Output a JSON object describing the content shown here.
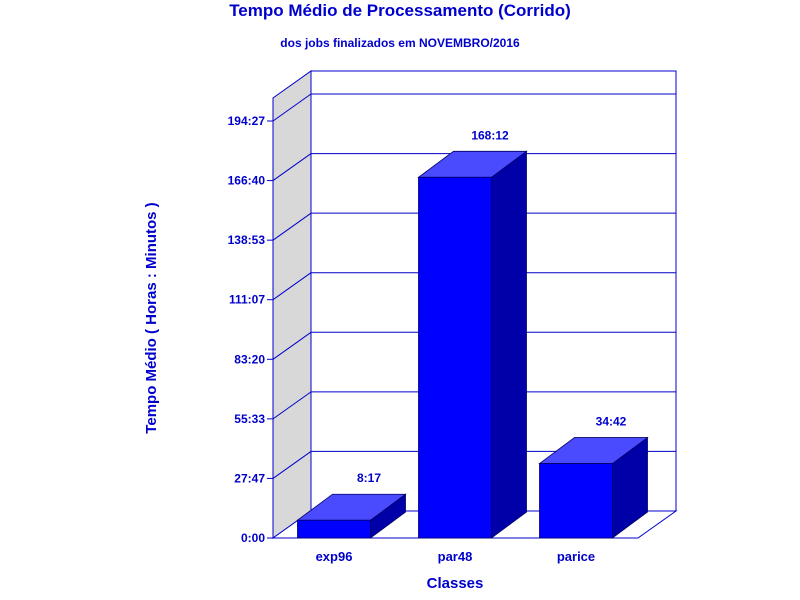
{
  "chart_data": {
    "type": "bar",
    "title": "Tempo Médio de Processamento (Corrido)",
    "subtitle": "dos jobs finalizados em NOVEMBRO/2016",
    "xlabel": "Classes",
    "ylabel": "Tempo Médio ( Horas : Minutos )",
    "categories": [
      "exp96",
      "par48",
      "parice"
    ],
    "values": [
      8.2833,
      168.2,
      34.7
    ],
    "value_labels": [
      "8:17",
      "168:12",
      "34:42"
    ],
    "ylim": [
      0,
      194.45
    ],
    "yticks": [
      0,
      27.7833,
      55.55,
      83.3333,
      111.1167,
      138.8833,
      166.6667,
      194.45
    ],
    "ytick_labels": [
      "0:00",
      "27:47",
      "55:33",
      "83:20",
      "111:07",
      "138:53",
      "166:40",
      "194:27"
    ],
    "grid": true,
    "legend": false,
    "colors": {
      "bar_front": "#0000ff",
      "bar_top": "#4a4aff",
      "bar_side": "#0000a8",
      "text": "#0000cc",
      "axis": "#0000cc",
      "wall": "#d8d8d8"
    }
  }
}
